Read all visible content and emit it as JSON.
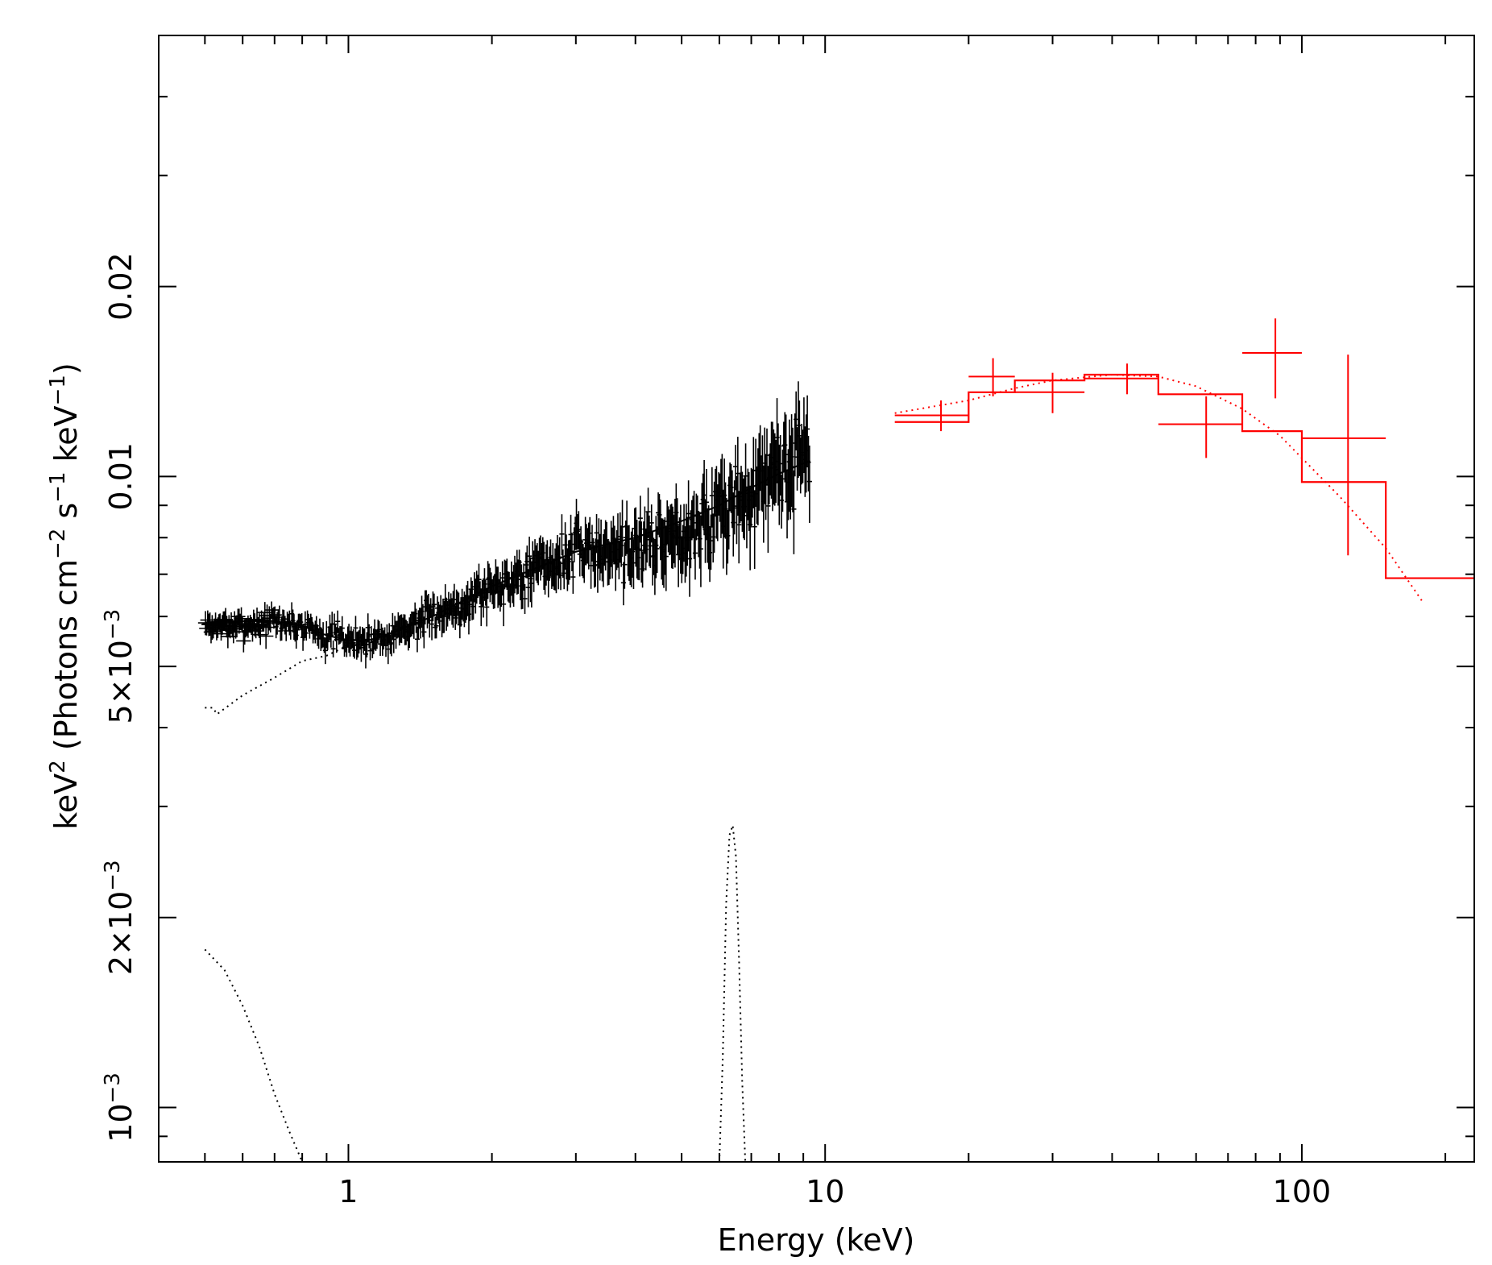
{
  "chart_data": {
    "type": "scatter",
    "title": "",
    "xlabel": "Energy (keV)",
    "ylabel": {
      "base": "keV",
      "sup1": "2",
      "mid1": " (Photons cm",
      "sup2": "−2",
      "mid2": " s",
      "sup3": "−1",
      "mid3": " keV",
      "sup4": "−1",
      "end": ")"
    },
    "xscale": "log",
    "yscale": "log",
    "xlim": [
      0.4,
      230
    ],
    "ylim": [
      0.00082,
      0.05
    ],
    "x_ticks": [
      {
        "value": 1,
        "label": "1"
      },
      {
        "value": 10,
        "label": "10"
      },
      {
        "value": 100,
        "label": "100"
      }
    ],
    "y_ticks": [
      {
        "value": 0.001,
        "base": "10",
        "sup": "−3"
      },
      {
        "value": 0.002,
        "base": "2×10",
        "sup": "−3"
      },
      {
        "value": 0.005,
        "base": "5×10",
        "sup": "−3"
      },
      {
        "value": 0.01,
        "base": "0.01",
        "sup": ""
      },
      {
        "value": 0.02,
        "base": "0.02",
        "sup": ""
      }
    ],
    "colors": {
      "soft": "#000000",
      "hard": "#ff0000"
    },
    "series": [
      {
        "kind": "data",
        "color": "#000000",
        "generator": {
          "x_range": [
            0.5,
            9.3
          ],
          "points": 540,
          "noise_rel_low": 0.035,
          "noise_rel_high": 0.14,
          "seed": 7
        },
        "anchors_x": [
          0.5,
          0.6,
          0.7,
          0.8,
          0.9,
          1.0,
          1.1,
          1.2,
          1.5,
          2.0,
          3.0,
          4.0,
          5.0,
          6.0,
          7.0,
          8.0,
          9.0
        ],
        "anchors_y": [
          0.0058,
          0.0058,
          0.0059,
          0.0058,
          0.0056,
          0.0055,
          0.0055,
          0.0056,
          0.006,
          0.0067,
          0.0076,
          0.0078,
          0.0082,
          0.0088,
          0.0094,
          0.0105,
          0.0108
        ]
      },
      {
        "kind": "model",
        "color": "#000000",
        "style": "solid",
        "x": [
          0.5,
          0.6,
          0.7,
          0.8,
          0.9,
          1.0,
          1.1,
          1.2,
          1.5,
          2.0,
          3.0,
          4.0,
          5.0,
          6.0,
          7.0,
          8.0,
          9.3
        ],
        "y": [
          0.0058,
          0.0059,
          0.0059,
          0.0058,
          0.0056,
          0.0055,
          0.0055,
          0.0056,
          0.006,
          0.0067,
          0.0076,
          0.008,
          0.0085,
          0.009,
          0.0096,
          0.0101,
          0.0106
        ]
      },
      {
        "kind": "component",
        "color": "#000000",
        "style": "dotted",
        "x": [
          0.5,
          0.52,
          0.53,
          0.6,
          0.7,
          0.8,
          0.9,
          1.0,
          1.2,
          1.5,
          2.0,
          3.0,
          4.0,
          5.0,
          6.0,
          7.0,
          8.0,
          9.3
        ],
        "y": [
          0.0043,
          0.0043,
          0.0042,
          0.0045,
          0.0048,
          0.0051,
          0.0052,
          0.0054,
          0.0056,
          0.006,
          0.0067,
          0.0076,
          0.008,
          0.0085,
          0.009,
          0.0096,
          0.0101,
          0.0106
        ]
      },
      {
        "kind": "component",
        "color": "#000000",
        "style": "dotted",
        "x": [
          0.5,
          0.55,
          0.6,
          0.65,
          0.7,
          0.75,
          0.8
        ],
        "y": [
          0.00178,
          0.00165,
          0.00145,
          0.00125,
          0.00105,
          0.00092,
          0.00082
        ]
      },
      {
        "kind": "component",
        "color": "#000000",
        "style": "dotted",
        "x": [
          6.0,
          6.1,
          6.2,
          6.3,
          6.4,
          6.5,
          6.6,
          6.7,
          6.8
        ],
        "y": [
          0.00082,
          0.0012,
          0.0021,
          0.0027,
          0.0028,
          0.0025,
          0.0017,
          0.0011,
          0.00082
        ]
      },
      {
        "kind": "data",
        "color": "#ff0000",
        "x": [
          17.5,
          22.5,
          30,
          43,
          63,
          88,
          125
        ],
        "xlo": [
          14,
          20,
          25,
          35,
          50,
          75,
          100
        ],
        "xhi": [
          20,
          25,
          35,
          50,
          75,
          100,
          150
        ],
        "y": [
          0.0125,
          0.0144,
          0.0136,
          0.0143,
          0.0121,
          0.0157,
          0.0115
        ],
        "ylo": [
          0.0118,
          0.0134,
          0.0126,
          0.0135,
          0.0107,
          0.0133,
          0.0075
        ],
        "yhi": [
          0.0132,
          0.0154,
          0.0146,
          0.0151,
          0.0134,
          0.0178,
          0.0156
        ]
      },
      {
        "kind": "model",
        "color": "#ff0000",
        "style": "step",
        "edges": [
          14,
          20,
          25,
          35,
          50,
          75,
          100,
          150,
          230
        ],
        "y": [
          0.0122,
          0.0136,
          0.0142,
          0.0145,
          0.0135,
          0.0118,
          0.0098,
          0.0069
        ]
      },
      {
        "kind": "component",
        "color": "#ff0000",
        "style": "dotted",
        "x": [
          14,
          20,
          25,
          30,
          40,
          50,
          60,
          75,
          90,
          100,
          120,
          150,
          180
        ],
        "y": [
          0.0126,
          0.0132,
          0.0138,
          0.0142,
          0.0145,
          0.0144,
          0.0139,
          0.0128,
          0.0116,
          0.0107,
          0.0093,
          0.0077,
          0.0063
        ]
      }
    ]
  }
}
